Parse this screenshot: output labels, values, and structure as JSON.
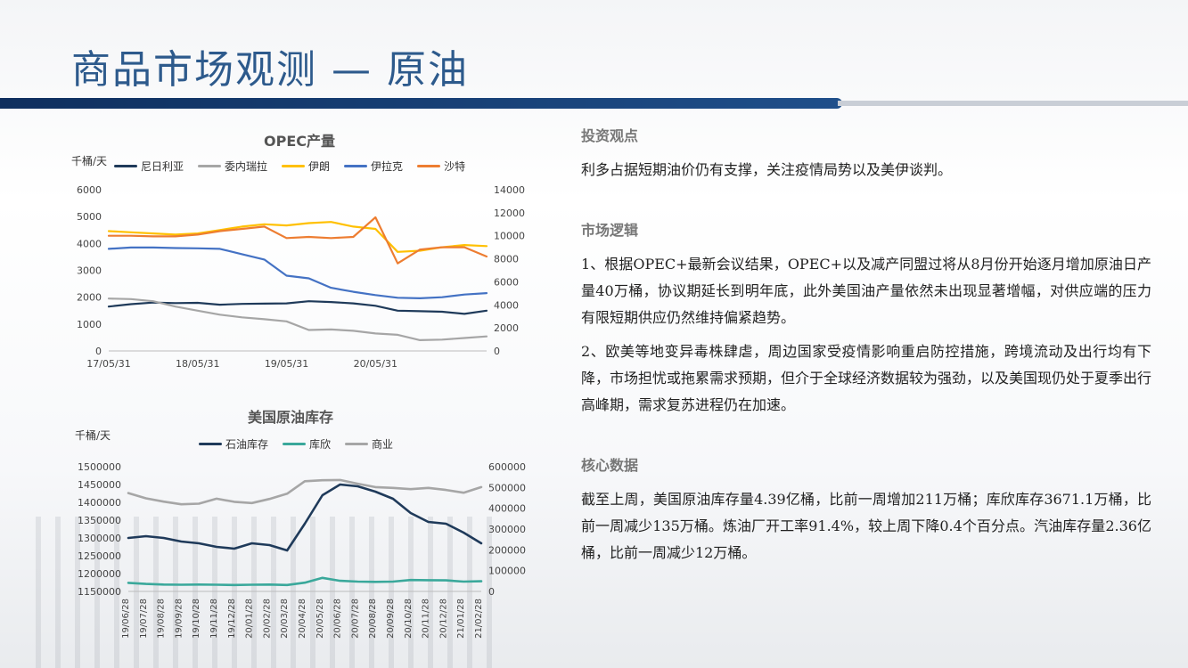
{
  "page": {
    "title": "商品市场观测 — 原油",
    "colors": {
      "title": "#2d5a8c",
      "bar": "#14396b"
    }
  },
  "charts": {
    "opec_unit": "千桶/天",
    "inventory_unit": "千桶/天"
  },
  "chart_data": [
    {
      "type": "line",
      "title": "OPEC产量",
      "x": [
        "17/05/31",
        "17/08/31",
        "17/11/30",
        "18/02/28",
        "18/05/31",
        "18/08/31",
        "18/11/30",
        "19/02/28",
        "19/05/31",
        "19/08/31",
        "19/11/30",
        "20/02/29",
        "20/05/31",
        "20/08/31",
        "20/11/30",
        "21/02/28",
        "21/05/31",
        "21/06/30"
      ],
      "x_tick_labels": [
        "17/05/31",
        "18/05/31",
        "19/05/31",
        "20/05/31"
      ],
      "left_axis": {
        "ylim": [
          0,
          6000
        ],
        "ticks": [
          "6000",
          "5000",
          "4000",
          "3000",
          "2000",
          "1000",
          "0"
        ]
      },
      "right_axis": {
        "ylim": [
          0,
          14000
        ],
        "ticks": [
          "14000",
          "12000",
          "10000",
          "8000",
          "6000",
          "4000",
          "2000",
          "0"
        ]
      },
      "legend_position": "top",
      "series": [
        {
          "name": "尼日利亚",
          "axis": "left",
          "color": "#1f3a5a",
          "values": [
            1650,
            1740,
            1800,
            1780,
            1790,
            1720,
            1750,
            1760,
            1770,
            1850,
            1820,
            1770,
            1680,
            1500,
            1480,
            1460,
            1380,
            1500
          ]
        },
        {
          "name": "委内瑞拉",
          "axis": "left",
          "color": "#a6a6a6",
          "values": [
            1950,
            1930,
            1850,
            1650,
            1500,
            1350,
            1250,
            1180,
            1100,
            780,
            800,
            750,
            650,
            600,
            400,
            420,
            480,
            540
          ]
        },
        {
          "name": "伊朗",
          "axis": "right",
          "color": "#ffc000",
          "values": [
            10400,
            10300,
            10200,
            10100,
            10200,
            10500,
            10800,
            11000,
            10900,
            11100,
            11200,
            10800,
            10600,
            8600,
            8700,
            9000,
            9200,
            9100
          ]
        },
        {
          "name": "伊拉克",
          "axis": "left",
          "color": "#4472c4",
          "values": [
            3800,
            3850,
            3850,
            3830,
            3820,
            3800,
            3600,
            3400,
            2800,
            2700,
            2350,
            2200,
            2080,
            1980,
            1960,
            2000,
            2100,
            2150
          ]
        },
        {
          "name": "沙特",
          "axis": "right",
          "color": "#ed7d31",
          "values": [
            10000,
            10000,
            9950,
            9950,
            10100,
            10400,
            10600,
            10800,
            9800,
            9900,
            9800,
            9900,
            11600,
            7600,
            8800,
            9000,
            9000,
            8200
          ]
        }
      ]
    },
    {
      "type": "line",
      "title": "美国原油库存",
      "x": [
        "19/06/28",
        "19/07/28",
        "19/08/28",
        "19/09/28",
        "19/10/28",
        "19/11/28",
        "19/12/28",
        "20/01/28",
        "20/02/28",
        "20/03/28",
        "20/04/28",
        "20/05/28",
        "20/06/28",
        "20/07/28",
        "20/08/28",
        "20/09/28",
        "20/10/28",
        "20/11/28",
        "20/12/28",
        "21/01/28",
        "21/02/28"
      ],
      "left_axis": {
        "ylim": [
          1150000,
          1500000
        ],
        "ticks": [
          "1500000",
          "1450000",
          "1400000",
          "1350000",
          "1300000",
          "1250000",
          "1200000",
          "1150000"
        ]
      },
      "right_axis": {
        "ylim": [
          0,
          600000
        ],
        "ticks": [
          "600000",
          "500000",
          "400000",
          "300000",
          "200000",
          "100000",
          "0"
        ]
      },
      "legend_position": "top",
      "series": [
        {
          "name": "石油库存",
          "axis": "left",
          "color": "#1f3a5a",
          "values": [
            1300000,
            1305000,
            1300000,
            1290000,
            1285000,
            1275000,
            1270000,
            1285000,
            1280000,
            1265000,
            1340000,
            1420000,
            1450000,
            1445000,
            1430000,
            1410000,
            1370000,
            1345000,
            1340000,
            1315000,
            1285000
          ]
        },
        {
          "name": "库欣",
          "axis": "right",
          "color": "#3aa89b",
          "values": [
            41000,
            36000,
            33000,
            32000,
            33000,
            32000,
            31000,
            32000,
            33000,
            31000,
            42000,
            65000,
            51000,
            47000,
            46000,
            47000,
            55000,
            54000,
            53000,
            47000,
            49000
          ]
        },
        {
          "name": "商业",
          "axis": "right",
          "color": "#a6a6a6",
          "values": [
            473000,
            448000,
            432000,
            419000,
            422000,
            446000,
            431000,
            425000,
            445000,
            470000,
            530000,
            535000,
            536000,
            518000,
            502000,
            498000,
            492000,
            498000,
            488000,
            475000,
            502000
          ]
        }
      ]
    }
  ],
  "sections": [
    {
      "heading": "投资观点",
      "paragraphs": [
        "利多占据短期油价仍有支撑，关注疫情局势以及美伊谈判。"
      ]
    },
    {
      "heading": "市场逻辑",
      "paragraphs": [
        "1、根据OPEC+最新会议结果，OPEC+以及减产同盟过将从8月份开始逐月增加原油日产量40万桶，协议期延长到明年底，此外美国油产量依然未出现显著增幅，对供应端的压力有限短期供应仍然维持偏紧趋势。",
        "2、欧美等地变异毒株肆虐，周边国家受疫情影响重启防控措施，跨境流动及出行均有下降，市场担忧或拖累需求预期，但介于全球经济数据较为强劲，以及美国现仍处于夏季出行高峰期，需求复苏进程仍在加速。"
      ]
    },
    {
      "heading": "核心数据",
      "paragraphs": [
        "截至上周，美国原油库存量4.39亿桶，比前一周增加211万桶；库欣库存3671.1万桶，比前一周减少135万桶。炼油厂开工率91.4%，较上周下降0.4个百分点。汽油库存量2.36亿桶，比前一周减少12万桶。"
      ]
    }
  ]
}
